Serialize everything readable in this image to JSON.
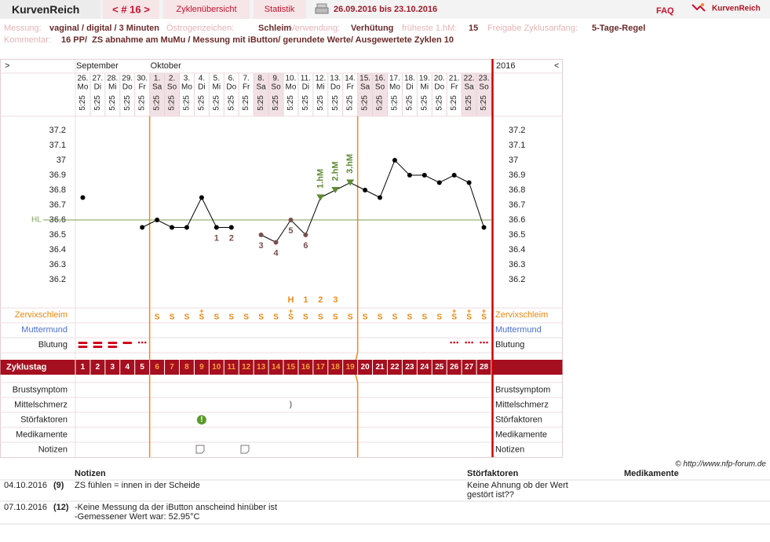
{
  "header": {
    "logo": "KurvenReich",
    "cycle_nav": "< # 16 >",
    "tabs": [
      "Zyklenübersicht",
      "Statistik"
    ],
    "date_range": "26.09.2016 bis 23.10.2016",
    "faq": "FAQ",
    "brand": "KurvenReich"
  },
  "info": {
    "fields": [
      {
        "label": "Messung:",
        "value": "vaginal / digital / 3 Minuten"
      },
      {
        "label": "Östrogenzeichen:",
        "value": "Schleim"
      },
      {
        "label": "Verwendung:",
        "value": "Verhütung"
      },
      {
        "label": "früheste 1.hM:",
        "value": "15"
      },
      {
        "label": "Freigabe Zyklusanfang:",
        "value": "5-Tage-Regel"
      }
    ],
    "comment_label": "Kommentar:",
    "comment": "16 PP/  ZS abnahme am MuMu / Messung mit iButton/ gerundete Werte/ Ausgewertete Zyklen 10"
  },
  "chart_data": {
    "type": "line",
    "nav_left": ">",
    "nav_right": "<",
    "year": "2016",
    "month_labels": [
      "September",
      null,
      null,
      null,
      null,
      "Oktober",
      null,
      null,
      null,
      null,
      null,
      null,
      null,
      null,
      null,
      null,
      null,
      null,
      null,
      null,
      null,
      null,
      null,
      null,
      null,
      null,
      null,
      null
    ],
    "categories": [
      "26.",
      "27.",
      "28.",
      "29.",
      "30.",
      "1.",
      "2.",
      "3.",
      "4.",
      "5.",
      "6.",
      "7.",
      "8.",
      "9.",
      "10.",
      "11.",
      "12.",
      "13.",
      "14.",
      "15.",
      "16.",
      "17.",
      "18.",
      "19.",
      "20.",
      "21.",
      "22.",
      "23."
    ],
    "weekdays": [
      "Mo",
      "Di",
      "Mi",
      "Do",
      "Fr",
      "Sa",
      "So",
      "Mo",
      "Di",
      "Mi",
      "Do",
      "Fr",
      "Sa",
      "So",
      "Mo",
      "Di",
      "Mi",
      "Do",
      "Fr",
      "Sa",
      "So",
      "Mo",
      "Di",
      "Mi",
      "Do",
      "Fr",
      "Sa",
      "So"
    ],
    "times": [
      "5:25",
      "5:25",
      "5:25",
      "5:25",
      "5:25",
      "5:25",
      "5:25",
      "5:25",
      "5:25",
      "5:25",
      "5:25",
      "5:25",
      "5:25",
      "5:25",
      "5:25",
      "5:25",
      "5:25",
      "5:25",
      "5:25",
      "5:25",
      "5:25",
      "5:25",
      "5:25",
      "5:25",
      "5:25",
      "5:25",
      "5:25",
      "5:25"
    ],
    "column_fill": [
      null,
      null,
      null,
      null,
      null,
      "#f2e1e4",
      "#f2e1e4",
      null,
      null,
      null,
      null,
      null,
      "#f2e1e4",
      "#f2e1e4",
      null,
      null,
      null,
      null,
      null,
      "#f2e1e4",
      "#f2e1e4",
      null,
      null,
      null,
      null,
      null,
      "#f2e1e4",
      "#f2e1e4"
    ],
    "values": [
      36.75,
      null,
      null,
      null,
      36.55,
      36.6,
      36.55,
      36.55,
      36.75,
      36.55,
      36.55,
      null,
      36.5,
      36.45,
      36.6,
      36.5,
      36.75,
      36.8,
      36.85,
      36.8,
      36.75,
      37.0,
      36.9,
      36.9,
      36.85,
      36.9,
      36.85,
      36.55
    ],
    "color": "#000000",
    "marker_colors": [
      "#000000",
      null,
      null,
      null,
      "#000000",
      "#000000",
      "#000000",
      "#000000",
      "#000000",
      "#000000",
      "#000000",
      null,
      "#7a5050",
      "#7a5050",
      "#7a5050",
      "#7a5050",
      "#000000",
      "#000000",
      "#000000",
      "#000000",
      "#000000",
      "#000000",
      "#000000",
      "#000000",
      "#000000",
      "#000000",
      "#000000",
      "#000000"
    ],
    "lower_labels": [
      null,
      null,
      null,
      null,
      null,
      null,
      null,
      null,
      null,
      "1",
      "2",
      null,
      "3",
      "4",
      "5",
      "6",
      null,
      null,
      null,
      null,
      null,
      null,
      null,
      null,
      null,
      null,
      null,
      null
    ],
    "lower_label_color": "#7a5050",
    "high_labels": [
      null,
      null,
      null,
      null,
      null,
      null,
      null,
      null,
      null,
      null,
      null,
      null,
      null,
      null,
      null,
      null,
      "1.hM",
      "2.hM",
      "3.hM",
      null,
      null,
      null,
      null,
      null,
      null,
      null,
      null,
      null
    ],
    "high_color": "#5f8a32",
    "peak_marks": [
      null,
      null,
      null,
      null,
      null,
      null,
      null,
      null,
      null,
      null,
      null,
      null,
      null,
      null,
      "H",
      "1",
      "2",
      "3",
      null,
      null,
      null,
      null,
      null,
      null,
      null,
      null,
      null,
      null
    ],
    "ylim": [
      36.1,
      37.3
    ],
    "yticks": [
      36.2,
      36.3,
      36.4,
      36.5,
      36.6,
      36.7,
      36.8,
      36.9,
      37,
      37.1,
      37.2
    ],
    "coverline": {
      "value": 36.6,
      "label": "HL",
      "color": "#7f9f55"
    },
    "fertile_window": {
      "start": 6,
      "end": 19,
      "color": "#f08a1c"
    },
    "rows_top": [
      {
        "label": "Zervixschleim",
        "label_color": "#e8870e",
        "color": "#e8870e",
        "values": [
          null,
          null,
          null,
          null,
          null,
          "S",
          "S",
          "S",
          "S",
          "S",
          "S",
          "S",
          "S",
          "S",
          "S",
          "S",
          "S",
          "S",
          "S",
          "S",
          "S",
          "S",
          "S",
          "S",
          "S",
          "S",
          "S",
          "S"
        ],
        "plus": [
          null,
          null,
          null,
          null,
          null,
          null,
          null,
          null,
          "+",
          null,
          null,
          null,
          null,
          null,
          "+",
          null,
          null,
          null,
          null,
          null,
          null,
          null,
          null,
          null,
          null,
          "+",
          "+",
          "+"
        ]
      },
      {
        "label": "Muttermund",
        "label_color": "#4a6fd0"
      },
      {
        "label": "Blutung",
        "label_color": "#222222",
        "color": "#d0021b",
        "levels": [
          3,
          3,
          3,
          2,
          1,
          null,
          null,
          null,
          null,
          null,
          null,
          null,
          null,
          null,
          null,
          null,
          null,
          null,
          null,
          null,
          null,
          null,
          null,
          null,
          null,
          1,
          1,
          1
        ]
      }
    ],
    "cycle_row": {
      "label": "Zyklustag",
      "color": "#a50f1f",
      "values": [
        1,
        2,
        3,
        4,
        5,
        6,
        7,
        8,
        9,
        10,
        11,
        12,
        13,
        14,
        15,
        16,
        17,
        18,
        19,
        20,
        21,
        22,
        23,
        24,
        25,
        26,
        27,
        28
      ]
    },
    "rows_bottom": [
      {
        "label": "Brustsymptom"
      },
      {
        "label": "Mittelschmerz",
        "color": "#777777",
        "values": [
          null,
          null,
          null,
          null,
          null,
          null,
          null,
          null,
          null,
          null,
          null,
          null,
          null,
          null,
          ")",
          null,
          null,
          null,
          null,
          null,
          null,
          null,
          null,
          null,
          null,
          null,
          null,
          null
        ]
      },
      {
        "label": "Störfaktoren",
        "color": "#5a9a2a",
        "values": [
          null,
          null,
          null,
          null,
          null,
          null,
          null,
          null,
          "!",
          null,
          null,
          null,
          null,
          null,
          null,
          null,
          null,
          null,
          null,
          null,
          null,
          null,
          null,
          null,
          null,
          null,
          null,
          null
        ]
      },
      {
        "label": "Medikamente"
      },
      {
        "label": "Notizen"
      }
    ]
  },
  "copyright": "© http://www.nfp-forum.de",
  "notes": {
    "headers": [
      "Notizen",
      "Störfaktoren",
      "Medikamente"
    ],
    "rows": [
      {
        "date": "04.10.2016",
        "day": "(9)",
        "note": [
          "ZS fühlen = innen in der Scheide"
        ],
        "disturbance": [
          "Keine Ahnung ob der Wert",
          "gestört ist??"
        ]
      },
      {
        "date": "07.10.2016",
        "day": "(12)",
        "note": [
          "-Keine Messung da der iButton anscheind hinüber ist",
          "-Gemessener Wert war: 52.95°C"
        ]
      }
    ]
  }
}
